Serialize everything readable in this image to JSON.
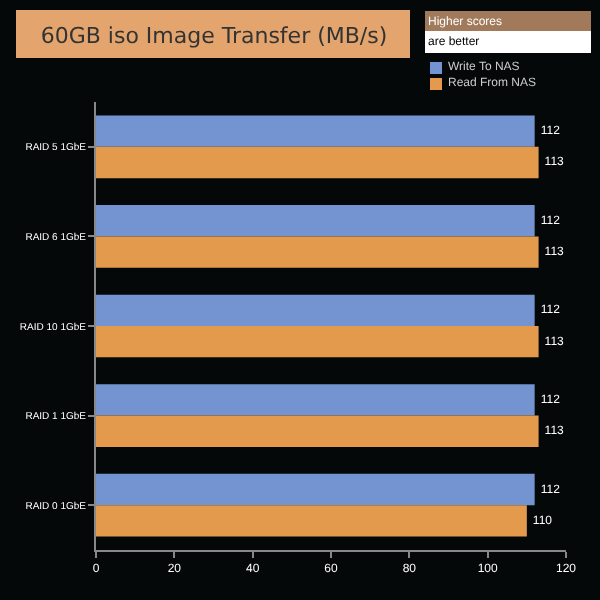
{
  "chart_data": {
    "type": "bar",
    "orientation": "horizontal",
    "title": "60GB iso Image Transfer (MB/s)",
    "annotations": [
      "Higher scores",
      "are better"
    ],
    "categories": [
      "RAID 5 1GbE",
      "RAID 6 1GbE",
      "RAID 10 1GbE",
      "RAID 1 1GbE",
      "RAID 0 1GbE"
    ],
    "series": [
      {
        "name": "Write To NAS",
        "color": "#7394d0",
        "values": [
          112,
          112,
          112,
          112,
          112
        ]
      },
      {
        "name": "Read From NAS",
        "color": "#e39a4d",
        "values": [
          113,
          113,
          113,
          113,
          110
        ]
      }
    ],
    "xlim": [
      0,
      120
    ],
    "xticks": [
      0,
      20,
      40,
      60,
      80,
      100,
      120
    ],
    "grid": false,
    "legend": "top right",
    "data_labels": true
  }
}
